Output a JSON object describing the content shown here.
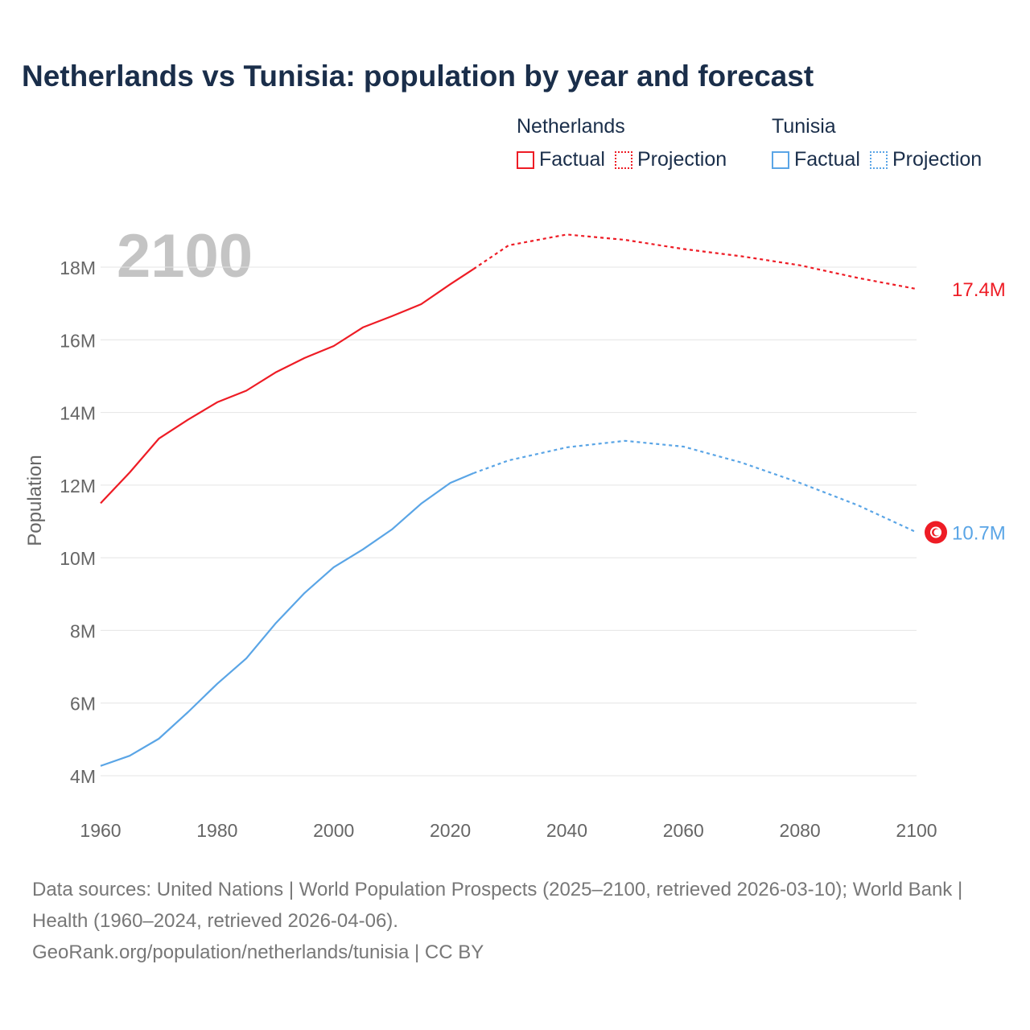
{
  "title": "Netherlands vs Tunisia: population by year and forecast",
  "legend": {
    "groups": [
      {
        "name": "Netherlands",
        "color": "#ee1c25",
        "factual": "Factual",
        "projection": "Projection"
      },
      {
        "name": "Tunisia",
        "color": "#5aa5e6",
        "factual": "Factual",
        "projection": "Projection"
      }
    ]
  },
  "year_watermark": "2100",
  "source": {
    "line1": "Data sources: United Nations | World Population Prospects (2025–2100, retrieved 2026-03-10); World Bank | Health (1960–2024, retrieved 2026-04-06).",
    "line2": "GeoRank.org/population/netherlands/tunisia | CC BY"
  },
  "chart_data": {
    "type": "line",
    "title": "Netherlands vs Tunisia: population by year and forecast",
    "xlabel": "",
    "ylabel": "Population",
    "xlim": [
      1960,
      2100
    ],
    "ylim": [
      4,
      18
    ],
    "x_ticks": [
      "1960",
      "1980",
      "2000",
      "2020",
      "2040",
      "2060",
      "2080",
      "2100"
    ],
    "y_ticks": [
      "4M",
      "6M",
      "8M",
      "10M",
      "12M",
      "14M",
      "16M",
      "18M"
    ],
    "grid": true,
    "units": "millions",
    "series": [
      {
        "name": "Netherlands",
        "color": "#ee1c25",
        "end_label": "17.4M",
        "factual": {
          "x": [
            1960,
            1965,
            1970,
            1975,
            1980,
            1985,
            1990,
            1995,
            2000,
            2005,
            2010,
            2015,
            2020,
            2024
          ],
          "y": [
            11.5,
            12.35,
            13.28,
            13.8,
            14.28,
            14.6,
            15.1,
            15.5,
            15.83,
            16.34,
            16.65,
            16.98,
            17.53,
            17.95
          ]
        },
        "projection": {
          "x": [
            2024,
            2030,
            2040,
            2050,
            2060,
            2070,
            2080,
            2090,
            2100
          ],
          "y": [
            17.95,
            18.6,
            18.9,
            18.75,
            18.5,
            18.3,
            18.05,
            17.7,
            17.4
          ]
        }
      },
      {
        "name": "Tunisia",
        "color": "#5aa5e6",
        "end_label": "10.7M",
        "factual": {
          "x": [
            1960,
            1965,
            1970,
            1975,
            1980,
            1985,
            1990,
            1995,
            2000,
            2005,
            2010,
            2015,
            2020,
            2024
          ],
          "y": [
            4.27,
            4.55,
            5.02,
            5.75,
            6.53,
            7.23,
            8.19,
            9.03,
            9.74,
            10.23,
            10.78,
            11.49,
            12.06,
            12.33
          ]
        },
        "projection": {
          "x": [
            2024,
            2030,
            2040,
            2050,
            2060,
            2070,
            2080,
            2090,
            2100
          ],
          "y": [
            12.33,
            12.68,
            13.04,
            13.22,
            13.06,
            12.62,
            12.06,
            11.44,
            10.7
          ]
        }
      }
    ]
  }
}
